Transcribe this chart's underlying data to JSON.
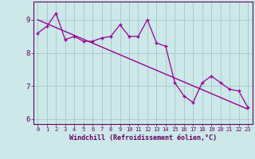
{
  "xlabel": "Windchill (Refroidissement éolien,°C)",
  "bg_color": "#cce8e8",
  "line_color": "#990099",
  "grid_color": "#aacccc",
  "x_data": [
    0,
    1,
    2,
    3,
    4,
    5,
    6,
    7,
    8,
    9,
    10,
    11,
    12,
    13,
    14,
    15,
    16,
    17,
    18,
    19,
    20,
    21,
    22,
    23
  ],
  "y_data": [
    8.6,
    8.8,
    9.2,
    8.4,
    8.5,
    8.35,
    8.35,
    8.45,
    8.5,
    8.85,
    8.5,
    8.5,
    9.0,
    8.3,
    8.2,
    7.1,
    6.7,
    6.5,
    7.1,
    7.3,
    7.1,
    6.9,
    6.85,
    6.35
  ],
  "trend_x": [
    0,
    23
  ],
  "trend_y": [
    9.0,
    6.3
  ],
  "ylim": [
    5.85,
    9.55
  ],
  "xlim": [
    -0.5,
    23.5
  ],
  "yticks": [
    6,
    7,
    8,
    9
  ],
  "xticks": [
    0,
    1,
    2,
    3,
    4,
    5,
    6,
    7,
    8,
    9,
    10,
    11,
    12,
    13,
    14,
    15,
    16,
    17,
    18,
    19,
    20,
    21,
    22,
    23
  ],
  "tick_color": "#660066",
  "spine_color": "#660066",
  "xlabel_fontsize": 6.0,
  "ytick_fontsize": 6.5,
  "xtick_fontsize": 5.0
}
